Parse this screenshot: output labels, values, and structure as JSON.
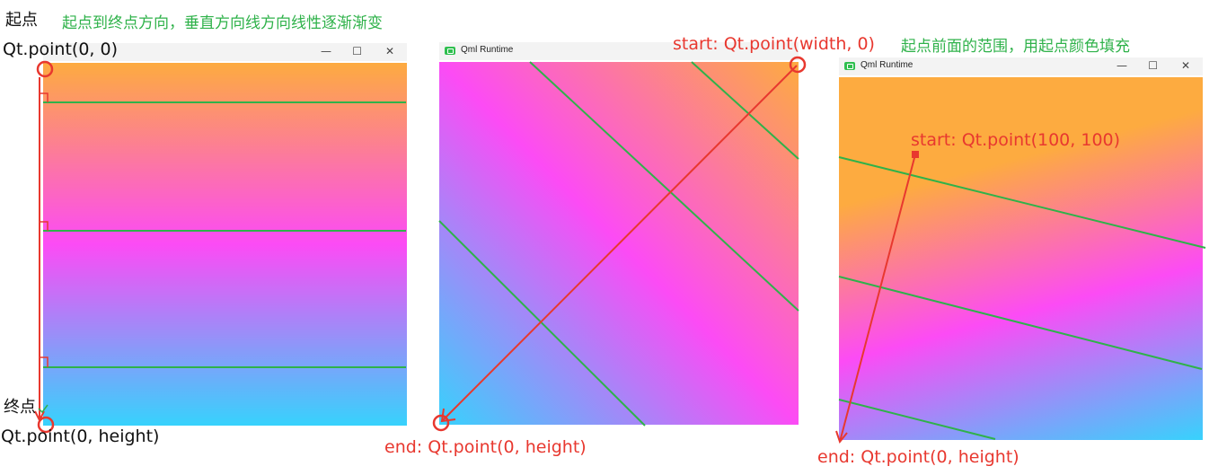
{
  "labels": {
    "start_cn": "起点",
    "caption1": "起点到终点方向，垂直方向线方向线性逐渐渐变",
    "p1_start": "Qt.point(0, 0)",
    "end_cn": "终点",
    "p1_end": "Qt.point(0, height)",
    "p2_start": "start: Qt.point(width, 0)",
    "p2_end": "end: Qt.point(0, height)",
    "caption3": "起点前面的范围，用起点颜色填充",
    "p3_start": "start: Qt.point(100, 100)",
    "p3_end": "end: Qt.point(0, height)"
  },
  "window": {
    "title": "Qml Runtime",
    "minimize": "—",
    "maximize": "☐",
    "close": "✕"
  },
  "gradient": {
    "color_start": "#fdab40",
    "color_mid": "#fc4bf5",
    "color_end": "#37d2fc"
  },
  "colors": {
    "annotation_red": "#e8382f",
    "line_green": "#2fb24a"
  }
}
